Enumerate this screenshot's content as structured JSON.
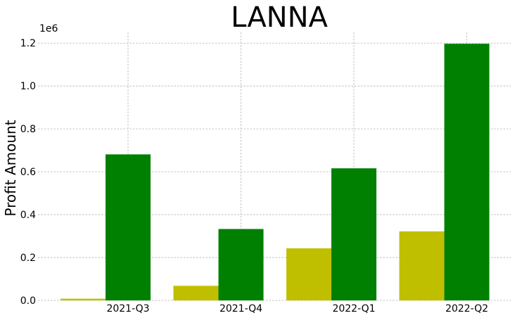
{
  "chart_data": {
    "type": "bar",
    "title": "LANNA",
    "xlabel": "",
    "ylabel": "Profit Amount",
    "y_multiplier_label": "1e6",
    "categories": [
      "2021-Q3",
      "2021-Q4",
      "2022-Q1",
      "2022-Q2"
    ],
    "series": [
      {
        "color": "#bfbf00",
        "values": [
          8000,
          68000,
          243000,
          322000
        ]
      },
      {
        "color": "#008000",
        "values": [
          681000,
          333000,
          616000,
          1197000
        ]
      }
    ],
    "ylim": [
      0,
      1250000
    ],
    "yticks": [
      0,
      200000,
      400000,
      600000,
      800000,
      1000000,
      1200000
    ],
    "ytick_labels": [
      "0.0",
      "0.2",
      "0.4",
      "0.6",
      "0.8",
      "1.0",
      "1.2"
    ],
    "grid": true,
    "legend": "none"
  }
}
